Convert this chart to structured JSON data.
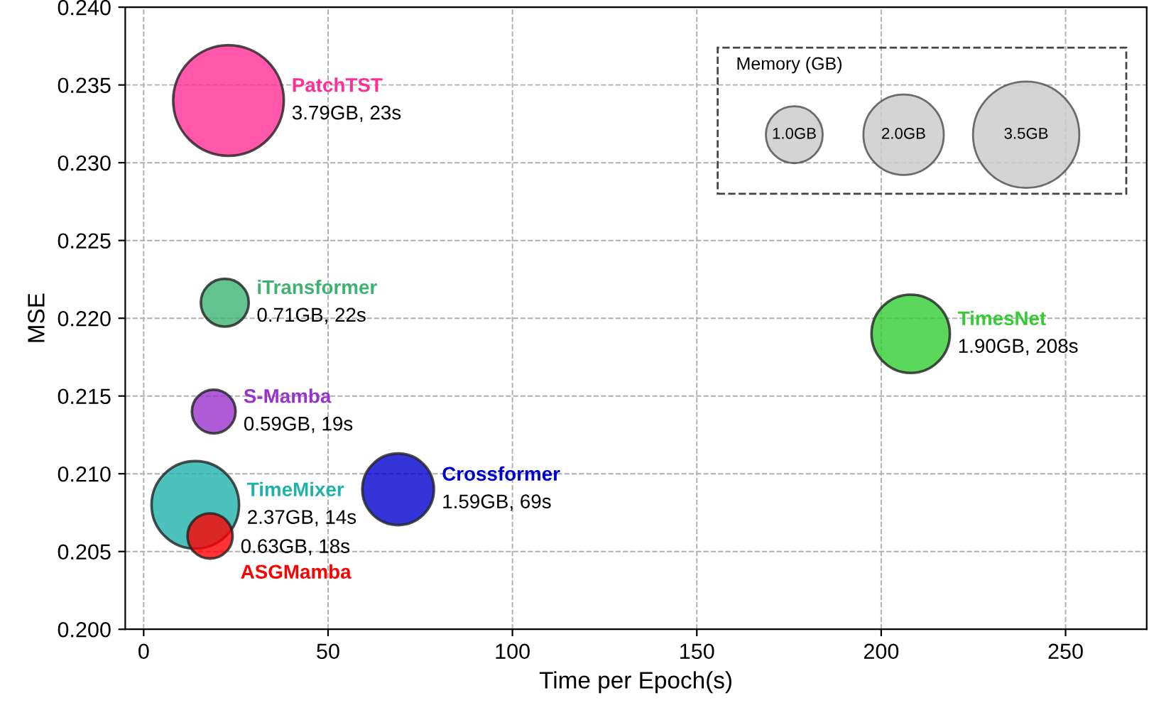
{
  "chart_data": {
    "type": "bubble",
    "xlabel": "Time per Epoch(s)",
    "ylabel": "MSE",
    "legend_title": "Memory (GB)",
    "xlim": [
      -5,
      272
    ],
    "xticks": [
      0,
      50,
      100,
      150,
      200,
      250
    ],
    "ylim": [
      0.2,
      0.24
    ],
    "yticks": [
      {
        "value": 0.2,
        "label": "0.200"
      },
      {
        "value": 0.205,
        "label": "0.205"
      },
      {
        "value": 0.21,
        "label": "0.210"
      },
      {
        "value": 0.215,
        "label": "0.215"
      },
      {
        "value": 0.22,
        "label": "0.220"
      },
      {
        "value": 0.225,
        "label": "0.225"
      },
      {
        "value": 0.23,
        "label": "0.230"
      },
      {
        "value": 0.235,
        "label": "0.235"
      },
      {
        "value": 0.24,
        "label": "0.240"
      }
    ],
    "grid": true,
    "size_legend": [
      {
        "value": 1.0,
        "label": "1.0GB"
      },
      {
        "value": 2.0,
        "label": "2.0GB"
      },
      {
        "value": 3.5,
        "label": "3.5GB"
      }
    ],
    "series": [
      {
        "name": "PatchTST",
        "color": "#ff2e96",
        "x": [
          23
        ],
        "values": [
          0.234
        ],
        "sizes": [
          3.79
        ],
        "value_labels": [
          "3.79GB, 23s"
        ]
      },
      {
        "name": "iTransformer",
        "color": "#3cb371",
        "x": [
          22
        ],
        "values": [
          0.221
        ],
        "sizes": [
          0.71
        ],
        "value_labels": [
          "0.71GB, 22s"
        ]
      },
      {
        "name": "S-Mamba",
        "color": "#9932cc",
        "x": [
          19
        ],
        "values": [
          0.214
        ],
        "sizes": [
          0.59
        ],
        "value_labels": [
          "0.59GB, 19s"
        ]
      },
      {
        "name": "TimeMixer",
        "color": "#20b2aa",
        "x": [
          14
        ],
        "values": [
          0.208
        ],
        "sizes": [
          2.37
        ],
        "value_labels": [
          "2.37GB, 14s"
        ]
      },
      {
        "name": "ASGMamba",
        "color": "#ff0000",
        "x": [
          18
        ],
        "values": [
          0.206
        ],
        "sizes": [
          0.63
        ],
        "value_labels": [
          "0.63GB, 18s"
        ]
      },
      {
        "name": "Crossformer",
        "color": "#0000cd",
        "x": [
          69
        ],
        "values": [
          0.209
        ],
        "sizes": [
          1.59
        ],
        "value_labels": [
          "1.59GB, 69s"
        ]
      },
      {
        "name": "TimesNet",
        "color": "#32cd32",
        "x": [
          208
        ],
        "values": [
          0.219
        ],
        "sizes": [
          1.9
        ],
        "value_labels": [
          "1.90GB, 208s"
        ]
      }
    ]
  }
}
